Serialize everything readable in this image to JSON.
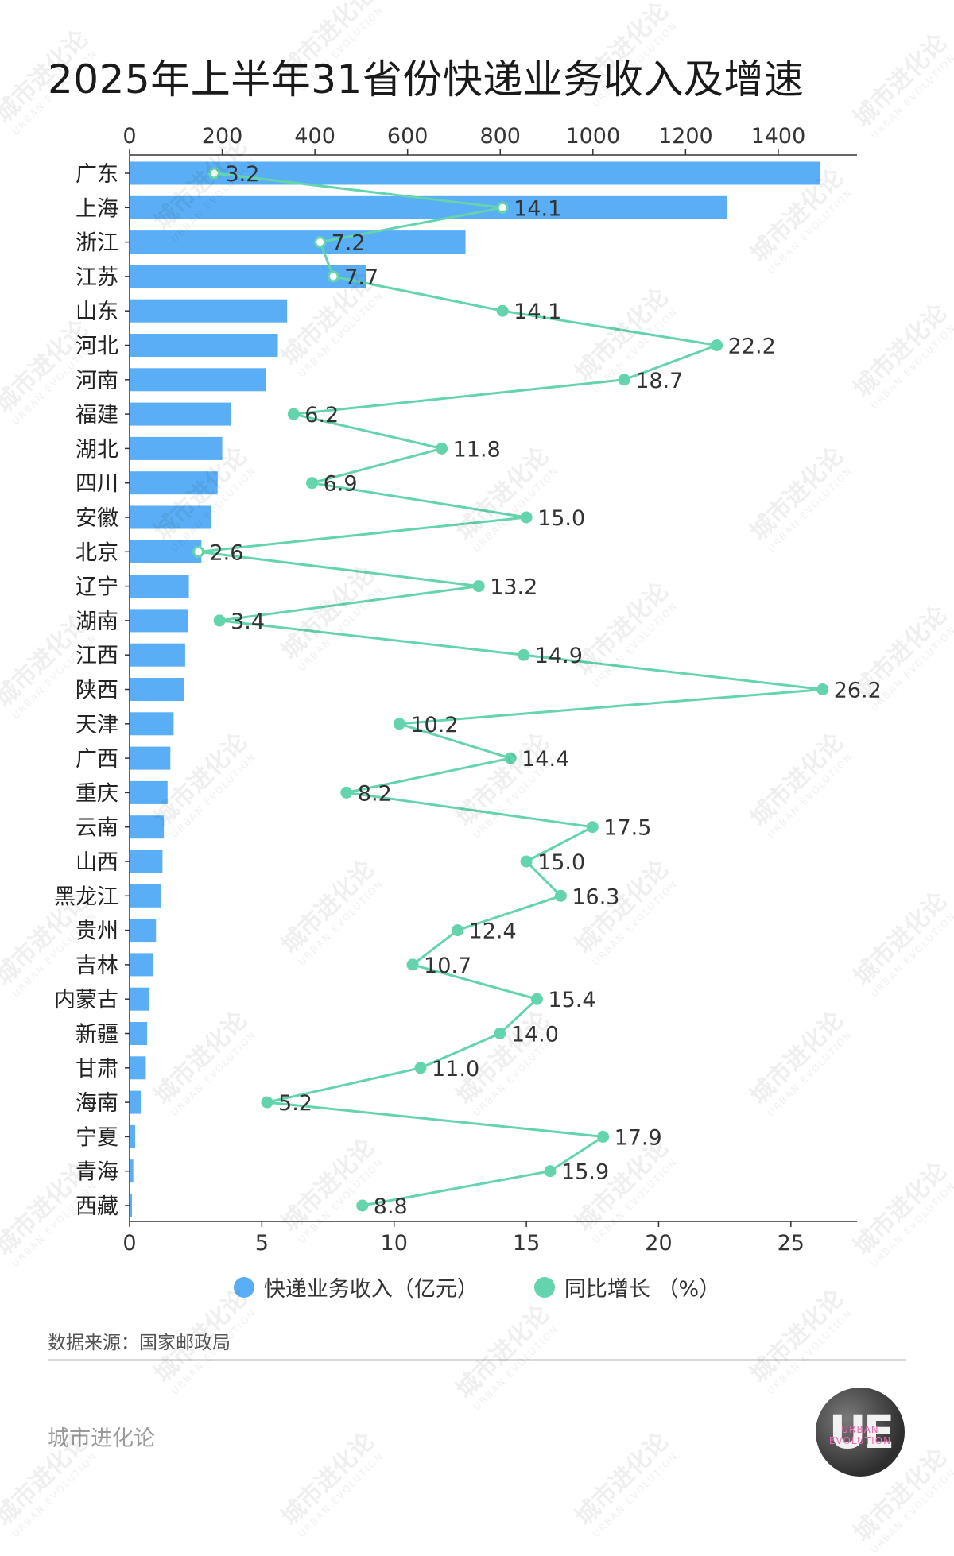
{
  "title": "2025年上半年31省份快递业务收入及增速",
  "legend": {
    "revenue": "快递业务收入（亿元）",
    "growth": "同比增长 （%）"
  },
  "source": "数据来源：国家邮政局",
  "brand": "城市进化论",
  "logo": {
    "mark": "UE",
    "sub": "URBAN EVOLUTION"
  },
  "watermark": {
    "text": "城市进化论",
    "sub": "URBAN EVOLUTION"
  },
  "colors": {
    "bar": "#5aaef5",
    "line": "#63d4ac",
    "axis": "#333333"
  },
  "chart_data": {
    "type": "bar",
    "categories": [
      "广东",
      "上海",
      "浙江",
      "江苏",
      "山东",
      "河北",
      "河南",
      "福建",
      "湖北",
      "四川",
      "安徽",
      "北京",
      "辽宁",
      "湖南",
      "江西",
      "陕西",
      "天津",
      "广西",
      "重庆",
      "云南",
      "山西",
      "黑龙江",
      "贵州",
      "吉林",
      "内蒙古",
      "新疆",
      "甘肃",
      "海南",
      "宁夏",
      "青海",
      "西藏"
    ],
    "series": [
      {
        "name": "快递业务收入（亿元）",
        "type": "bar",
        "axis": "top",
        "values": [
          1490,
          1290,
          725,
          510,
          340,
          320,
          295,
          218,
          200,
          190,
          175,
          155,
          128,
          126,
          120,
          117,
          95,
          88,
          82,
          74,
          71,
          68,
          57,
          50,
          42,
          38,
          35,
          24,
          12,
          8,
          5
        ]
      },
      {
        "name": "同比增长 （%）",
        "type": "line",
        "axis": "bottom",
        "values": [
          3.2,
          14.1,
          7.2,
          7.7,
          14.1,
          22.2,
          18.7,
          6.2,
          11.8,
          6.9,
          15.0,
          2.6,
          13.2,
          3.4,
          14.9,
          26.2,
          10.2,
          14.4,
          8.2,
          17.5,
          15.0,
          16.3,
          12.4,
          10.7,
          15.4,
          14.0,
          11.0,
          5.2,
          17.9,
          15.9,
          8.8
        ],
        "labels": [
          "3.2",
          "14.1",
          "7.2",
          "7.7",
          "14.1",
          "22.2",
          "18.7",
          "6.2",
          "11.8",
          "6.9",
          "15.0",
          "2.6",
          "13.2",
          "3.4",
          "14.9",
          "26.2",
          "10.2",
          "14.4",
          "8.2",
          "17.5",
          "15.0",
          "16.3",
          "12.4",
          "10.7",
          "15.4",
          "14.0",
          "11.0",
          "5.2",
          "17.9",
          "15.9",
          "8.8"
        ]
      }
    ],
    "x_top": {
      "ticks": [
        0,
        200,
        400,
        600,
        800,
        1000,
        1200,
        1400
      ],
      "range": [
        0,
        1570
      ]
    },
    "x_bottom": {
      "ticks": [
        0,
        5,
        10,
        15,
        20,
        25
      ],
      "range": [
        0,
        27.5
      ]
    },
    "grid": false,
    "legend_position": "bottom"
  }
}
